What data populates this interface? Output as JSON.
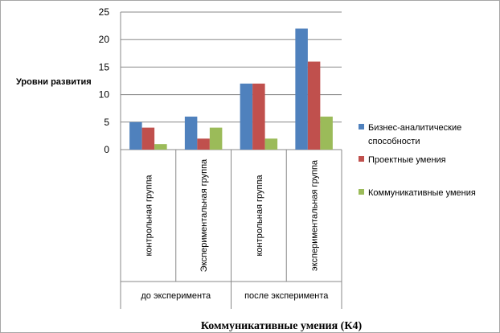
{
  "chart_data": {
    "type": "bar",
    "title": "Коммуникативные умения (К4)",
    "ylabel": "Уровни развития",
    "xlabel": "",
    "ylim": [
      0,
      25
    ],
    "yticks": [
      0,
      5,
      10,
      15,
      20,
      25
    ],
    "grid": true,
    "legend_position": "right",
    "categories": [
      "контрольная группа",
      "Экспериментальная группа",
      "контрольная группа",
      "экспериментальная группа"
    ],
    "groups": [
      {
        "label": "до эксперимента",
        "span": 2
      },
      {
        "label": "после эксперимента",
        "span": 2
      }
    ],
    "series": [
      {
        "name": "Бизнес-аналитические способности",
        "color": "#4f81bd",
        "values": [
          5,
          6,
          12,
          22
        ]
      },
      {
        "name": "Проектные умения",
        "color": "#c0504d",
        "values": [
          4,
          2,
          12,
          16
        ]
      },
      {
        "name": "Коммуникативные умения",
        "color": "#9bbb59",
        "values": [
          1,
          4,
          2,
          6
        ]
      }
    ]
  }
}
